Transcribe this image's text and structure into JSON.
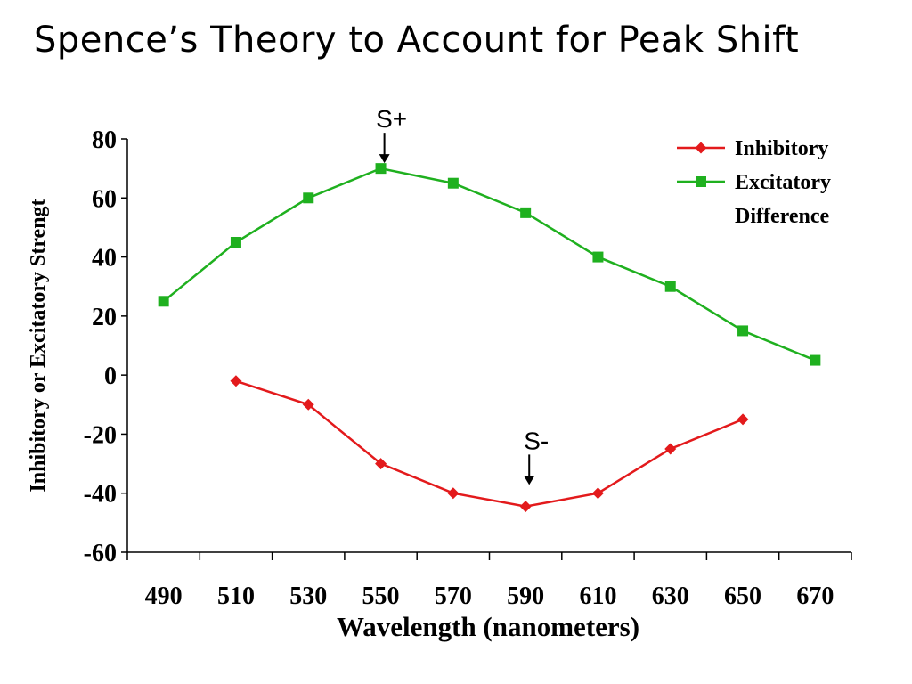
{
  "slide": {
    "title": "Spence’s Theory to Account for  Peak Shift"
  },
  "chart_data": {
    "type": "line",
    "xlabel": "Wavelength (nanometers)",
    "ylabel": "Inhibitory or Excitatory Strengt",
    "xlim": [
      480,
      680
    ],
    "ylim": [
      -60,
      80
    ],
    "x_ticks": [
      490,
      510,
      530,
      550,
      570,
      590,
      610,
      630,
      650,
      670
    ],
    "y_ticks": [
      80,
      60,
      40,
      20,
      0,
      -20,
      -40,
      -60
    ],
    "legend_position": "top-right",
    "series": [
      {
        "name": "Inhibitory",
        "color": "#e31a1c",
        "marker": "diamond",
        "points": [
          [
            510,
            -2
          ],
          [
            530,
            -10
          ],
          [
            550,
            -30
          ],
          [
            570,
            -40
          ],
          [
            590,
            -44.5
          ],
          [
            610,
            -40
          ],
          [
            630,
            -25
          ],
          [
            650,
            -15
          ]
        ]
      },
      {
        "name": "Excitatory",
        "color": "#1fb01f",
        "marker": "square",
        "points": [
          [
            490,
            25
          ],
          [
            510,
            45
          ],
          [
            530,
            60
          ],
          [
            550,
            70
          ],
          [
            570,
            65
          ],
          [
            590,
            55
          ],
          [
            610,
            40
          ],
          [
            630,
            30
          ],
          [
            650,
            15
          ],
          [
            670,
            5
          ]
        ]
      }
    ],
    "legend_extra": "Difference",
    "annotations": [
      {
        "text": "S+",
        "x": 551,
        "y": 70
      },
      {
        "text": "S-",
        "x": 591,
        "y": -39
      }
    ]
  }
}
